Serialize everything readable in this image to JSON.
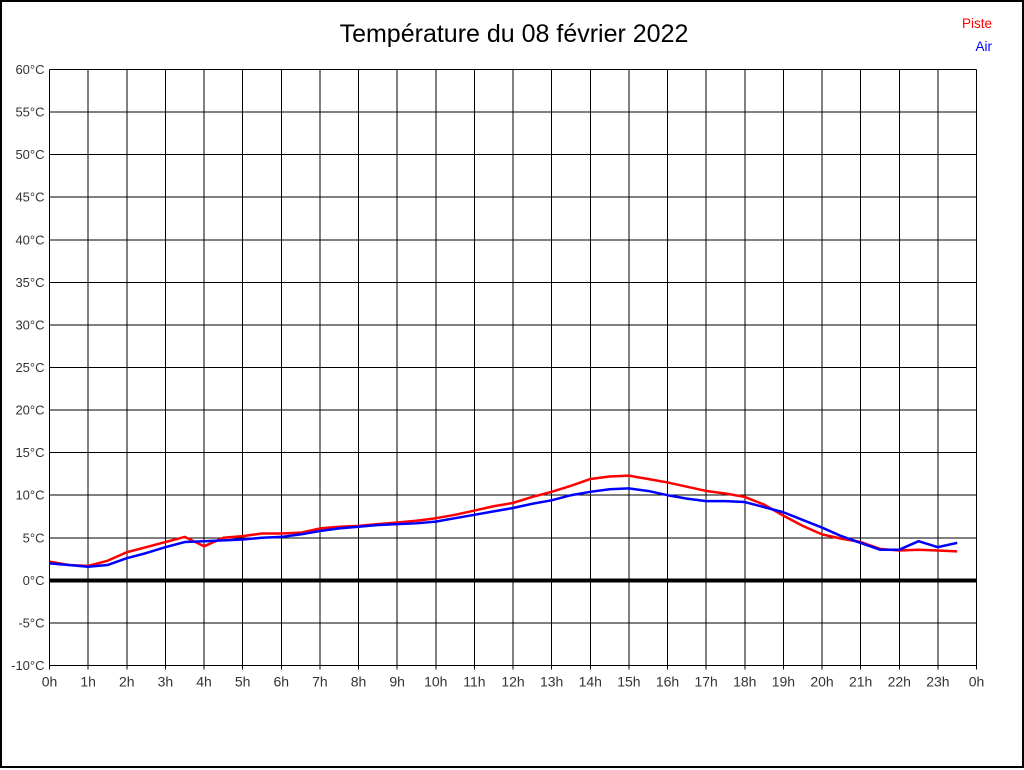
{
  "title": "Température du 08 février 2022",
  "legend": {
    "items": [
      {
        "label": "Piste",
        "color": "#ff0000"
      },
      {
        "label": "Air",
        "color": "#0000ff"
      }
    ]
  },
  "colors": {
    "background": "#ffffff",
    "frame": "#000000",
    "grid": "#000000",
    "zero_line": "#000000",
    "axis_text": "#333333",
    "title_text": "#000000"
  },
  "chart_data": {
    "type": "line",
    "title": "Température du 08 février 2022",
    "xlabel": "",
    "ylabel": "",
    "x_unit": "hours",
    "xlim": [
      0,
      24
    ],
    "ylim": [
      -10,
      60
    ],
    "grid": true,
    "zero_line_emphasis": true,
    "legend_position": "top-right",
    "x_ticks": [
      0,
      1,
      2,
      3,
      4,
      5,
      6,
      7,
      8,
      9,
      10,
      11,
      12,
      13,
      14,
      15,
      16,
      17,
      18,
      19,
      20,
      21,
      22,
      23,
      24
    ],
    "x_tick_labels": [
      "0h",
      "1h",
      "2h",
      "3h",
      "4h",
      "5h",
      "6h",
      "7h",
      "8h",
      "9h",
      "10h",
      "11h",
      "12h",
      "13h",
      "14h",
      "15h",
      "16h",
      "17h",
      "18h",
      "19h",
      "20h",
      "21h",
      "22h",
      "23h",
      "0h"
    ],
    "y_ticks": [
      -10,
      -5,
      0,
      5,
      10,
      15,
      20,
      25,
      30,
      35,
      40,
      45,
      50,
      55,
      60
    ],
    "y_tick_labels": [
      "-10°C",
      "-5°C",
      "0°C",
      "5°C",
      "10°C",
      "15°C",
      "20°C",
      "25°C",
      "30°C",
      "35°C",
      "40°C",
      "45°C",
      "50°C",
      "55°C",
      "60°C"
    ],
    "x": [
      0,
      0.5,
      1,
      1.5,
      2,
      2.5,
      3,
      3.5,
      4,
      4.5,
      5,
      5.5,
      6,
      6.5,
      7,
      7.5,
      8,
      8.5,
      9,
      9.5,
      10,
      10.5,
      11,
      11.5,
      12,
      12.5,
      13,
      13.5,
      14,
      14.5,
      15,
      15.5,
      16,
      16.5,
      17,
      17.5,
      18,
      18.5,
      19,
      19.5,
      20,
      20.5,
      21,
      21.5,
      22,
      22.5,
      23,
      23.5
    ],
    "series": [
      {
        "name": "Piste",
        "color": "#ff0000",
        "values": [
          2.2,
          1.8,
          1.7,
          2.3,
          3.3,
          3.9,
          4.5,
          5.1,
          4.0,
          5.0,
          5.2,
          5.5,
          5.5,
          5.6,
          6.1,
          6.3,
          6.4,
          6.6,
          6.8,
          7.0,
          7.3,
          7.7,
          8.2,
          8.7,
          9.1,
          9.8,
          10.4,
          11.1,
          11.9,
          12.2,
          12.3,
          11.9,
          11.5,
          11.0,
          10.5,
          10.2,
          9.8,
          8.9,
          7.6,
          6.4,
          5.4,
          4.9,
          4.5,
          3.7,
          3.5,
          3.6,
          3.5,
          3.4
        ]
      },
      {
        "name": "Air",
        "color": "#0000ff",
        "values": [
          2.0,
          1.8,
          1.6,
          1.8,
          2.6,
          3.2,
          3.9,
          4.5,
          4.6,
          4.7,
          4.8,
          5.0,
          5.1,
          5.4,
          5.8,
          6.1,
          6.3,
          6.5,
          6.6,
          6.7,
          6.9,
          7.3,
          7.7,
          8.1,
          8.5,
          9.0,
          9.4,
          10.0,
          10.4,
          10.7,
          10.8,
          10.5,
          10.0,
          9.6,
          9.3,
          9.3,
          9.2,
          8.6,
          8.0,
          7.1,
          6.2,
          5.2,
          4.4,
          3.6,
          3.6,
          4.6,
          3.9,
          4.4
        ]
      }
    ]
  }
}
